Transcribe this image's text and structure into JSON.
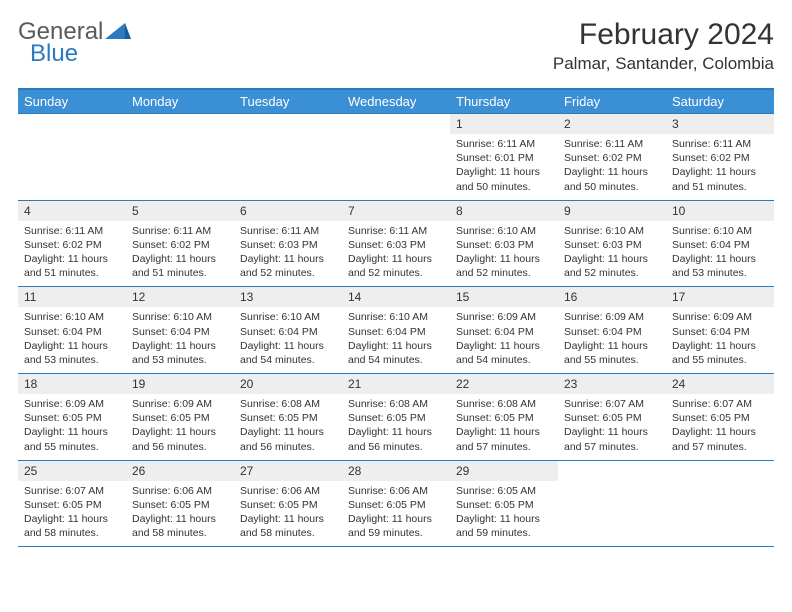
{
  "logo": {
    "part1": "General",
    "part2": "Blue"
  },
  "title": "February 2024",
  "location": "Palmar, Santander, Colombia",
  "colors": {
    "header_bg": "#3b8fd4",
    "border": "#2b7ac0",
    "daynum_bg": "#eeeeee",
    "logo_gray": "#5a5a5a",
    "logo_blue": "#2b7ac0"
  },
  "weekdays": [
    "Sunday",
    "Monday",
    "Tuesday",
    "Wednesday",
    "Thursday",
    "Friday",
    "Saturday"
  ],
  "weeks": [
    [
      null,
      null,
      null,
      null,
      {
        "n": "1",
        "sr": "6:11 AM",
        "ss": "6:01 PM",
        "dl": "11 hours and 50 minutes."
      },
      {
        "n": "2",
        "sr": "6:11 AM",
        "ss": "6:02 PM",
        "dl": "11 hours and 50 minutes."
      },
      {
        "n": "3",
        "sr": "6:11 AM",
        "ss": "6:02 PM",
        "dl": "11 hours and 51 minutes."
      }
    ],
    [
      {
        "n": "4",
        "sr": "6:11 AM",
        "ss": "6:02 PM",
        "dl": "11 hours and 51 minutes."
      },
      {
        "n": "5",
        "sr": "6:11 AM",
        "ss": "6:02 PM",
        "dl": "11 hours and 51 minutes."
      },
      {
        "n": "6",
        "sr": "6:11 AM",
        "ss": "6:03 PM",
        "dl": "11 hours and 52 minutes."
      },
      {
        "n": "7",
        "sr": "6:11 AM",
        "ss": "6:03 PM",
        "dl": "11 hours and 52 minutes."
      },
      {
        "n": "8",
        "sr": "6:10 AM",
        "ss": "6:03 PM",
        "dl": "11 hours and 52 minutes."
      },
      {
        "n": "9",
        "sr": "6:10 AM",
        "ss": "6:03 PM",
        "dl": "11 hours and 52 minutes."
      },
      {
        "n": "10",
        "sr": "6:10 AM",
        "ss": "6:04 PM",
        "dl": "11 hours and 53 minutes."
      }
    ],
    [
      {
        "n": "11",
        "sr": "6:10 AM",
        "ss": "6:04 PM",
        "dl": "11 hours and 53 minutes."
      },
      {
        "n": "12",
        "sr": "6:10 AM",
        "ss": "6:04 PM",
        "dl": "11 hours and 53 minutes."
      },
      {
        "n": "13",
        "sr": "6:10 AM",
        "ss": "6:04 PM",
        "dl": "11 hours and 54 minutes."
      },
      {
        "n": "14",
        "sr": "6:10 AM",
        "ss": "6:04 PM",
        "dl": "11 hours and 54 minutes."
      },
      {
        "n": "15",
        "sr": "6:09 AM",
        "ss": "6:04 PM",
        "dl": "11 hours and 54 minutes."
      },
      {
        "n": "16",
        "sr": "6:09 AM",
        "ss": "6:04 PM",
        "dl": "11 hours and 55 minutes."
      },
      {
        "n": "17",
        "sr": "6:09 AM",
        "ss": "6:04 PM",
        "dl": "11 hours and 55 minutes."
      }
    ],
    [
      {
        "n": "18",
        "sr": "6:09 AM",
        "ss": "6:05 PM",
        "dl": "11 hours and 55 minutes."
      },
      {
        "n": "19",
        "sr": "6:09 AM",
        "ss": "6:05 PM",
        "dl": "11 hours and 56 minutes."
      },
      {
        "n": "20",
        "sr": "6:08 AM",
        "ss": "6:05 PM",
        "dl": "11 hours and 56 minutes."
      },
      {
        "n": "21",
        "sr": "6:08 AM",
        "ss": "6:05 PM",
        "dl": "11 hours and 56 minutes."
      },
      {
        "n": "22",
        "sr": "6:08 AM",
        "ss": "6:05 PM",
        "dl": "11 hours and 57 minutes."
      },
      {
        "n": "23",
        "sr": "6:07 AM",
        "ss": "6:05 PM",
        "dl": "11 hours and 57 minutes."
      },
      {
        "n": "24",
        "sr": "6:07 AM",
        "ss": "6:05 PM",
        "dl": "11 hours and 57 minutes."
      }
    ],
    [
      {
        "n": "25",
        "sr": "6:07 AM",
        "ss": "6:05 PM",
        "dl": "11 hours and 58 minutes."
      },
      {
        "n": "26",
        "sr": "6:06 AM",
        "ss": "6:05 PM",
        "dl": "11 hours and 58 minutes."
      },
      {
        "n": "27",
        "sr": "6:06 AM",
        "ss": "6:05 PM",
        "dl": "11 hours and 58 minutes."
      },
      {
        "n": "28",
        "sr": "6:06 AM",
        "ss": "6:05 PM",
        "dl": "11 hours and 59 minutes."
      },
      {
        "n": "29",
        "sr": "6:05 AM",
        "ss": "6:05 PM",
        "dl": "11 hours and 59 minutes."
      },
      null,
      null
    ]
  ],
  "labels": {
    "sunrise": "Sunrise: ",
    "sunset": "Sunset: ",
    "daylight": "Daylight: "
  }
}
